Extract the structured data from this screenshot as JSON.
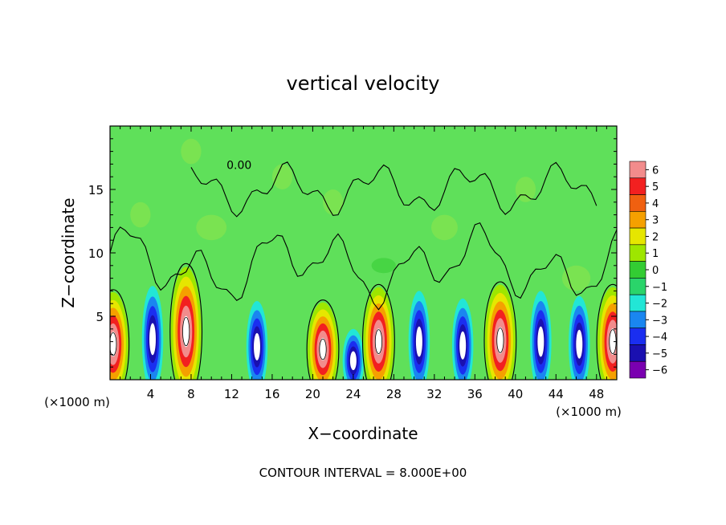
{
  "chart_data": {
    "type": "heatmap",
    "title": "vertical velocity",
    "xlabel": "X−coordinate",
    "ylabel": "Z−coordinate",
    "x_unit_left": "(×1000 m)",
    "x_unit_right": "(×1000 m)",
    "footer": "CONTOUR INTERVAL = 8.000E+00",
    "contour_label": "0.00",
    "xlim": [
      0,
      50
    ],
    "ylim": [
      0,
      20
    ],
    "x_ticks": [
      4,
      8,
      12,
      16,
      20,
      24,
      28,
      32,
      36,
      40,
      44,
      48
    ],
    "x_tick_labels": [
      "4",
      "8",
      "12",
      "16",
      "20",
      "24",
      "28",
      "32",
      "36",
      "40",
      "44",
      "48"
    ],
    "y_ticks": [
      5,
      10,
      15
    ],
    "y_tick_labels": [
      "5",
      "10",
      "15"
    ],
    "colorbar": {
      "levels": [
        6,
        5,
        4,
        3,
        2,
        1,
        0,
        -1,
        -2,
        -3,
        -4,
        -5,
        -6
      ],
      "labels": [
        "6",
        "5",
        "4",
        "3",
        "2",
        "1",
        "0",
        "−1",
        "−2",
        "−3",
        "−4",
        "−5",
        "−6"
      ],
      "colors": [
        "#f28c8c",
        "#f22020",
        "#f06010",
        "#f5a000",
        "#e6e600",
        "#9ee600",
        "#33cc33",
        "#2ad46a",
        "#22e6d6",
        "#1a86f0",
        "#1a2ef0",
        "#1a10b0",
        "#7a00b0"
      ]
    },
    "background_color": "#5fe05a",
    "cells": [
      {
        "x": 0.3,
        "y": 2.8,
        "value": 6
      },
      {
        "x": 4.2,
        "y": 3.2,
        "value": -5
      },
      {
        "x": 7.5,
        "y": 3.8,
        "value": 5
      },
      {
        "x": 14.5,
        "y": 2.6,
        "value": -3
      },
      {
        "x": 21.0,
        "y": 2.4,
        "value": 6
      },
      {
        "x": 24.0,
        "y": 1.5,
        "value": -5
      },
      {
        "x": 26.5,
        "y": 3.0,
        "value": 6
      },
      {
        "x": 30.5,
        "y": 3.0,
        "value": -5
      },
      {
        "x": 34.8,
        "y": 2.7,
        "value": -5
      },
      {
        "x": 38.5,
        "y": 3.1,
        "value": 6
      },
      {
        "x": 42.5,
        "y": 3.0,
        "value": -5
      },
      {
        "x": 46.3,
        "y": 2.8,
        "value": -5
      },
      {
        "x": 49.6,
        "y": 3.0,
        "value": 6
      }
    ]
  }
}
